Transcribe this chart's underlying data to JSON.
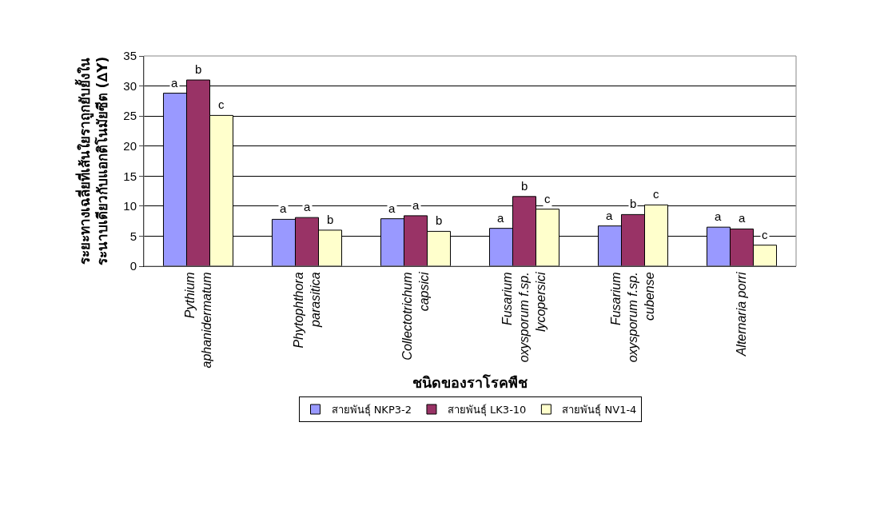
{
  "chart_data": {
    "type": "bar",
    "xlabel": "ชนิดของราโรคพืช",
    "ylabel": "ระยะทางเฉลี่ยที่เส้นใยราถูกยับยั้งใน\nระนาบเดียวกับแอกติโนมัยซีต (∆Y)",
    "categories": [
      "Pythium aphanidermatum",
      "Phytophthora parasitica",
      "Collectotrichum capsici",
      "Fusarium oxysporum f.sp. lycopersici",
      "Fusarium oxysporum f.sp. cubense",
      "Alternaria porri"
    ],
    "series": [
      {
        "name": "สายพันธุ์ NKP3-2",
        "color": "#9999ff",
        "values": [
          28.8,
          7.8,
          7.9,
          6.3,
          6.7,
          6.5
        ],
        "value_labels": [
          "a",
          "a",
          "a",
          "a",
          "a",
          "a"
        ]
      },
      {
        "name": "สายพันธุ์ LK3-10",
        "color": "#993366",
        "values": [
          31,
          8.1,
          8.4,
          11.6,
          8.6,
          6.2
        ],
        "value_labels": [
          "b",
          "a",
          "a",
          "b",
          "b",
          "a"
        ]
      },
      {
        "name": "สายพันธุ์ NV1-4",
        "color": "#ffffcc",
        "values": [
          25.1,
          6.0,
          5.8,
          9.5,
          10.2,
          3.5
        ],
        "value_labels": [
          "c",
          "b",
          "b",
          "c",
          "c",
          "c"
        ]
      }
    ],
    "ylim": [
      0,
      35
    ],
    "yticks": [
      0,
      5,
      10,
      15,
      20,
      25,
      30,
      35
    ],
    "grid": "y",
    "legend": "bottom"
  }
}
